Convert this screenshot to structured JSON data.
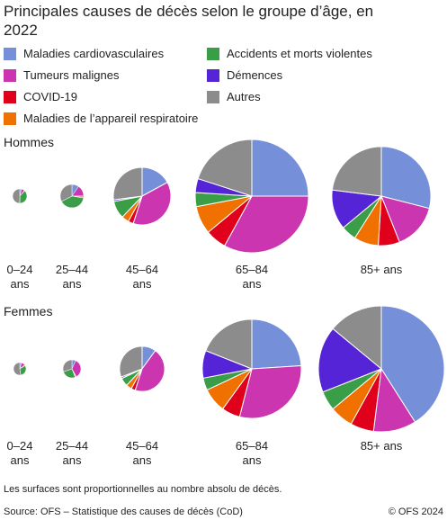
{
  "chart_data": {
    "type": "pie",
    "title": "Principales causes de décès selon le groupe d’âge, en 2022",
    "note": "Les surfaces sont proportionnelles au nombre absolu de décès.",
    "source": "Source: OFS – Statistique des causes de décès (CoD)",
    "copyright": "© OFS 2024",
    "panels": [
      "Hommes",
      "Femmes"
    ],
    "categories": [
      "0–24 ans",
      "25–44 ans",
      "45–64 ans",
      "65–84 ans",
      "85+ ans",
      "0–24 ans",
      "25–44 ans",
      "45–64 ans",
      "65–84 ans",
      "85+ ans"
    ],
    "series": [
      {
        "name": "Maladies cardiovasculaires",
        "color": "#7590d8",
        "values": [
          10,
          70,
          750,
          4250,
          3770,
          10,
          30,
          270,
          3120,
          8610
        ]
      },
      {
        "name": "Tumeurs malignes",
        "color": "#cc35b0",
        "values": [
          20,
          110,
          1670,
          5610,
          1950,
          20,
          150,
          1215,
          3900,
          2310
        ]
      },
      {
        "name": "COVID-19",
        "color": "#e0001b",
        "values": [
          0,
          10,
          130,
          1020,
          910,
          0,
          5,
          80,
          780,
          1260
        ]
      },
      {
        "name": "Maladies de l’appareil respiratoire",
        "color": "#f07000",
        "values": [
          3,
          10,
          180,
          1360,
          1040,
          5,
          5,
          110,
          1040,
          1260
        ]
      },
      {
        "name": "Accidents et morts violentes",
        "color": "#3a9e48",
        "values": [
          105,
          290,
          440,
          680,
          650,
          65,
          110,
          160,
          520,
          1050
        ]
      },
      {
        "name": "Démences",
        "color": "#5424d6",
        "values": [
          0,
          0,
          40,
          680,
          1690,
          0,
          0,
          30,
          1170,
          3570
        ]
      },
      {
        "name": "Autres",
        "color": "#8c8c8c",
        "values": [
          137,
          235,
          1190,
          3400,
          2990,
          110,
          130,
          835,
          2470,
          2940
        ]
      }
    ]
  }
}
